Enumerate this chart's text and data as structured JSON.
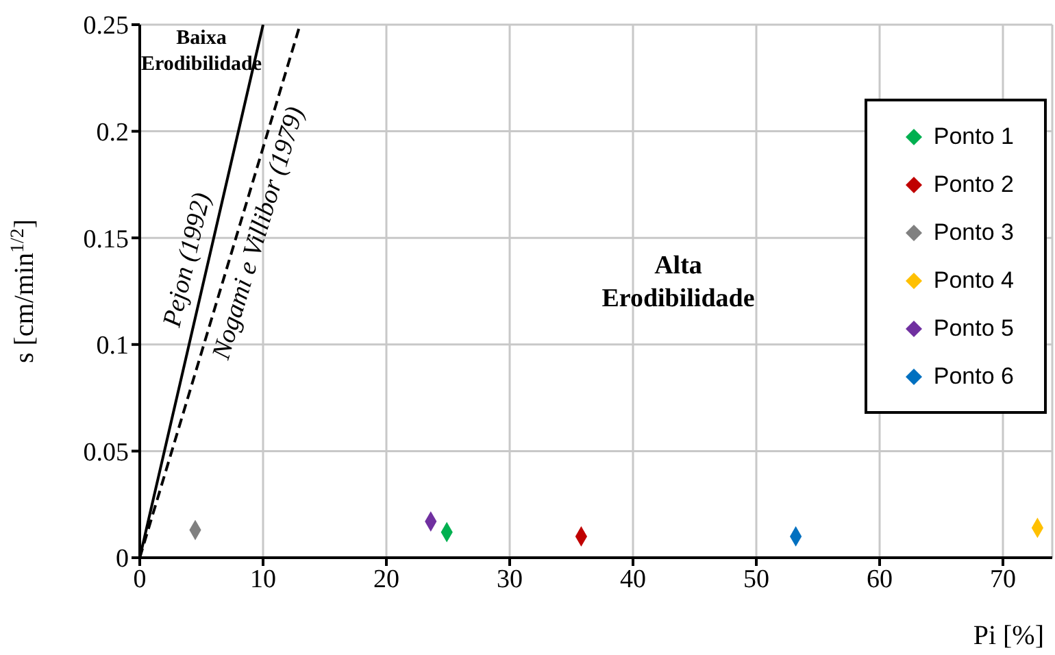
{
  "chart_data": {
    "type": "scatter",
    "xlabel": "Pi [%]",
    "ylabel": "s [cm/min$^{1/2}$]",
    "xlim": [
      0,
      74
    ],
    "xticks": [
      0,
      10,
      20,
      30,
      40,
      50,
      60,
      70
    ],
    "ylim": [
      0,
      0.25
    ],
    "yticks": [
      0,
      0.05,
      0.1,
      0.15,
      0.2,
      0.25
    ],
    "grid": true,
    "legend": "right",
    "marker": "diamond",
    "annotations": [
      "Baixa Erodibilidade",
      "Alta Erodibilidade"
    ],
    "series": [
      {
        "name": "Pejon (1992)",
        "type": "line",
        "color": "#000000",
        "marker": "none",
        "line_style": "solid",
        "x": [
          0,
          10
        ],
        "values": [
          0,
          0.25
        ]
      },
      {
        "name": "Nogami e Villibor (1979)",
        "type": "line",
        "color": "#000000",
        "marker": "none",
        "line_style": "dashed",
        "x": [
          0,
          13
        ],
        "values": [
          0,
          0.25
        ]
      },
      {
        "name": "Ponto 1",
        "color": "#00b050",
        "x": [
          24.9
        ],
        "values": [
          0.012
        ]
      },
      {
        "name": "Ponto 2",
        "color": "#c00000",
        "x": [
          35.8
        ],
        "values": [
          0.01
        ]
      },
      {
        "name": "Ponto 3",
        "color": "#808080",
        "x": [
          4.5
        ],
        "values": [
          0.013
        ]
      },
      {
        "name": "Ponto 4",
        "color": "#ffc000",
        "x": [
          72.8
        ],
        "values": [
          0.014
        ]
      },
      {
        "name": "Ponto 5",
        "color": "#7030a0",
        "x": [
          23.6
        ],
        "values": [
          0.017
        ]
      },
      {
        "name": "Ponto 6",
        "color": "#0070c0",
        "x": [
          53.2
        ],
        "values": [
          0.01
        ]
      }
    ]
  }
}
